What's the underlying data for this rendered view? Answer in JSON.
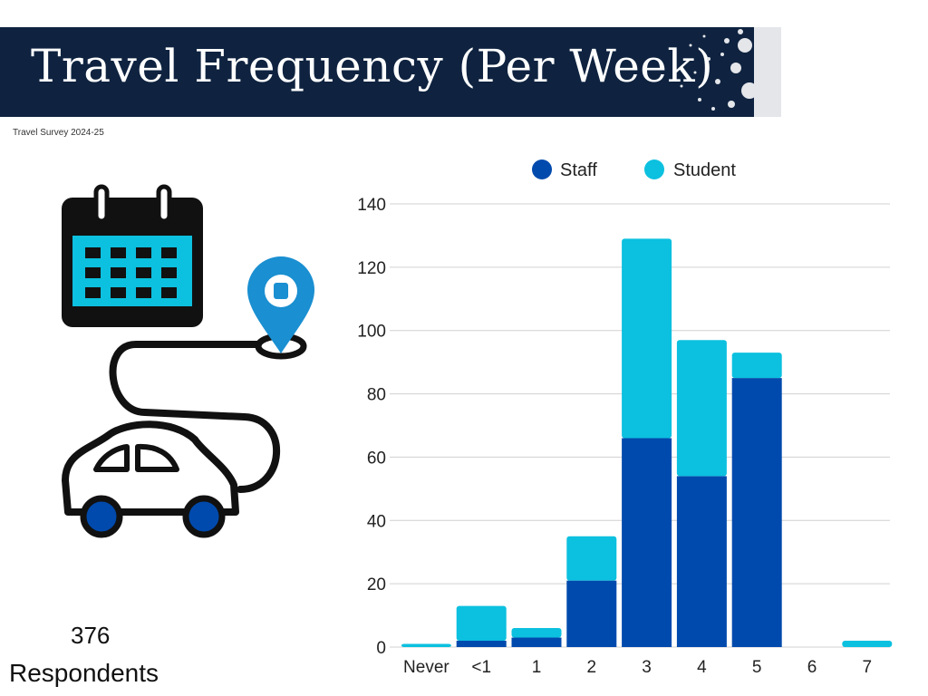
{
  "header": {
    "title": "Travel Frequency (Per Week)",
    "subtitle": "Travel Survey 2024-25"
  },
  "summary": {
    "count": "376",
    "label": "Respondents"
  },
  "icons": [
    "calendar-icon",
    "location-pin-icon",
    "car-icon"
  ],
  "colors": {
    "banner": "#0f2340",
    "staff": "#004aad",
    "student": "#0cc0df"
  },
  "chart_data": {
    "type": "bar",
    "stacked": true,
    "categories": [
      "Never",
      "<1",
      "1",
      "2",
      "3",
      "4",
      "5",
      "6",
      "7"
    ],
    "series": [
      {
        "name": "Staff",
        "values": [
          0,
          2,
          3,
          21,
          66,
          54,
          85,
          0,
          0
        ],
        "color": "#004aad"
      },
      {
        "name": "Student",
        "values": [
          1,
          11,
          3,
          14,
          63,
          43,
          8,
          0,
          2
        ],
        "color": "#0cc0df"
      }
    ],
    "yticks": [
      "0",
      "20",
      "40",
      "60",
      "80",
      "100",
      "120",
      "140"
    ],
    "ylim": [
      0,
      140
    ],
    "grid": true,
    "legend": "top"
  }
}
